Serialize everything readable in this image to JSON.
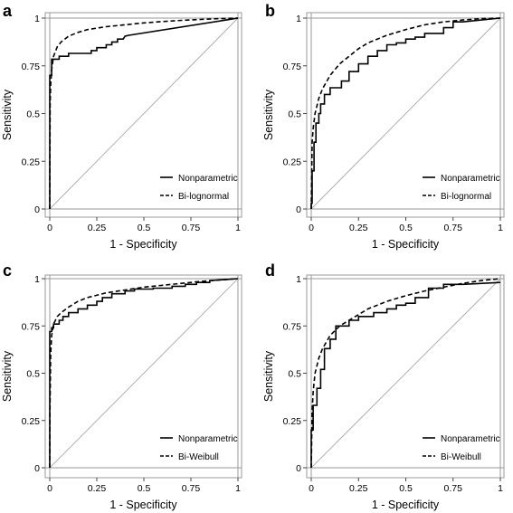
{
  "chart_data": [
    {
      "panel": "a",
      "type": "line",
      "xlabel": "1 - Specificity",
      "ylabel": "Sensitivity",
      "xlim": [
        0,
        1
      ],
      "ylim": [
        0,
        1
      ],
      "x_ticks": [
        "0",
        "0.25",
        "0.5",
        "0.75",
        "1"
      ],
      "y_ticks": [
        "0",
        "0.25",
        "0.5",
        "0.75",
        "1"
      ],
      "grid": false,
      "legend_position": "bottom-right",
      "series": [
        {
          "name": "Nonparametric",
          "style": "solid",
          "x": [
            0,
            0,
            0.01,
            0.01,
            0.05,
            0.05,
            0.1,
            0.1,
            0.22,
            0.22,
            0.25,
            0.25,
            0.3,
            0.3,
            0.33,
            0.33,
            0.36,
            0.36,
            0.39,
            0.4,
            0.42,
            1
          ],
          "y": [
            0,
            0.7,
            0.7,
            0.785,
            0.785,
            0.8,
            0.8,
            0.815,
            0.815,
            0.83,
            0.83,
            0.845,
            0.845,
            0.86,
            0.86,
            0.875,
            0.875,
            0.89,
            0.89,
            0.905,
            0.91,
            1
          ]
        },
        {
          "name": "Bi-lognormal",
          "style": "dashed",
          "x": [
            0,
            0.002,
            0.005,
            0.01,
            0.02,
            0.04,
            0.06,
            0.1,
            0.15,
            0.2,
            0.3,
            0.4,
            0.5,
            0.6,
            0.7,
            0.8,
            0.9,
            1
          ],
          "y": [
            0,
            0.55,
            0.65,
            0.73,
            0.8,
            0.85,
            0.875,
            0.905,
            0.925,
            0.94,
            0.955,
            0.965,
            0.975,
            0.982,
            0.988,
            0.993,
            0.997,
            1
          ]
        }
      ]
    },
    {
      "panel": "b",
      "type": "line",
      "xlabel": "1 - Specificity",
      "ylabel": "Sensitivity",
      "xlim": [
        0,
        1
      ],
      "ylim": [
        0,
        1
      ],
      "x_ticks": [
        "0",
        "0.25",
        "0.5",
        "0.75",
        "1"
      ],
      "y_ticks": [
        "0",
        "0.25",
        "0.5",
        "0.75",
        "1"
      ],
      "grid": false,
      "legend_position": "bottom-right",
      "series": [
        {
          "name": "Nonparametric",
          "style": "solid",
          "x": [
            0,
            0,
            0.005,
            0.005,
            0.015,
            0.015,
            0.025,
            0.025,
            0.04,
            0.04,
            0.05,
            0.05,
            0.07,
            0.07,
            0.1,
            0.1,
            0.16,
            0.16,
            0.2,
            0.2,
            0.25,
            0.25,
            0.3,
            0.3,
            0.35,
            0.35,
            0.4,
            0.4,
            0.45,
            0.45,
            0.5,
            0.5,
            0.55,
            0.55,
            0.6,
            0.6,
            0.7,
            0.7,
            0.75,
            0.75,
            0.8,
            1
          ],
          "y": [
            0,
            0.03,
            0.03,
            0.2,
            0.2,
            0.35,
            0.35,
            0.45,
            0.45,
            0.5,
            0.5,
            0.55,
            0.55,
            0.6,
            0.6,
            0.635,
            0.635,
            0.67,
            0.67,
            0.72,
            0.72,
            0.76,
            0.76,
            0.8,
            0.8,
            0.83,
            0.83,
            0.86,
            0.86,
            0.87,
            0.87,
            0.89,
            0.89,
            0.9,
            0.9,
            0.92,
            0.92,
            0.95,
            0.95,
            0.98,
            0.98,
            1
          ]
        },
        {
          "name": "Bi-lognormal",
          "style": "dashed",
          "x": [
            0,
            0.005,
            0.01,
            0.02,
            0.04,
            0.06,
            0.1,
            0.15,
            0.2,
            0.25,
            0.3,
            0.4,
            0.5,
            0.6,
            0.7,
            0.8,
            0.9,
            1
          ],
          "y": [
            0,
            0.35,
            0.42,
            0.5,
            0.58,
            0.63,
            0.7,
            0.76,
            0.8,
            0.84,
            0.87,
            0.91,
            0.94,
            0.965,
            0.98,
            0.99,
            0.997,
            1
          ]
        }
      ]
    },
    {
      "panel": "c",
      "type": "line",
      "xlabel": "1 - Specificity",
      "ylabel": "Sensitivity",
      "xlim": [
        0,
        1
      ],
      "ylim": [
        0,
        1
      ],
      "x_ticks": [
        "0",
        "0.25",
        "0.5",
        "0.75",
        "1"
      ],
      "y_ticks": [
        "0",
        "0.25",
        "0.5",
        "0.75",
        "1"
      ],
      "grid": false,
      "legend_position": "bottom-right",
      "series": [
        {
          "name": "Nonparametric",
          "style": "solid",
          "x": [
            0,
            0,
            0.01,
            0.01,
            0.02,
            0.02,
            0.05,
            0.05,
            0.07,
            0.07,
            0.1,
            0.1,
            0.15,
            0.15,
            0.2,
            0.2,
            0.25,
            0.25,
            0.28,
            0.28,
            0.33,
            0.33,
            0.4,
            0.4,
            0.45,
            0.45,
            0.55,
            0.55,
            0.65,
            0.65,
            0.72,
            0.72,
            0.78,
            0.78,
            0.85,
            0.85,
            1
          ],
          "y": [
            0,
            0.72,
            0.72,
            0.74,
            0.74,
            0.76,
            0.76,
            0.78,
            0.78,
            0.8,
            0.8,
            0.82,
            0.82,
            0.84,
            0.84,
            0.86,
            0.86,
            0.88,
            0.88,
            0.9,
            0.9,
            0.92,
            0.92,
            0.935,
            0.935,
            0.945,
            0.945,
            0.95,
            0.95,
            0.96,
            0.96,
            0.97,
            0.97,
            0.98,
            0.98,
            0.99,
            1
          ]
        },
        {
          "name": "Bi-Weibull",
          "style": "dashed",
          "x": [
            0,
            0.001,
            0.005,
            0.01,
            0.02,
            0.04,
            0.06,
            0.1,
            0.15,
            0.2,
            0.3,
            0.4,
            0.5,
            0.6,
            0.7,
            0.8,
            0.9,
            1
          ],
          "y": [
            0,
            0.3,
            0.6,
            0.7,
            0.76,
            0.8,
            0.82,
            0.85,
            0.88,
            0.9,
            0.925,
            0.94,
            0.955,
            0.965,
            0.975,
            0.985,
            0.993,
            1
          ]
        }
      ]
    },
    {
      "panel": "d",
      "type": "line",
      "xlabel": "1 - Specificity",
      "ylabel": "Sensitivity",
      "xlim": [
        0,
        1
      ],
      "ylim": [
        0,
        1
      ],
      "x_ticks": [
        "0",
        "0.25",
        "0.5",
        "0.75",
        "1"
      ],
      "y_ticks": [
        "0",
        "0.25",
        "0.5",
        "0.75",
        "1"
      ],
      "grid": false,
      "legend_position": "bottom-right",
      "series": [
        {
          "name": "Nonparametric",
          "style": "solid",
          "x": [
            0,
            0,
            0.01,
            0.01,
            0.03,
            0.03,
            0.05,
            0.05,
            0.07,
            0.07,
            0.1,
            0.1,
            0.13,
            0.13,
            0.2,
            0.2,
            0.25,
            0.25,
            0.33,
            0.33,
            0.4,
            0.4,
            0.45,
            0.45,
            0.5,
            0.5,
            0.55,
            0.55,
            0.62,
            0.62,
            0.7,
            0.7,
            0.8,
            0.8,
            1
          ],
          "y": [
            0,
            0.2,
            0.2,
            0.33,
            0.33,
            0.42,
            0.42,
            0.52,
            0.52,
            0.63,
            0.63,
            0.68,
            0.68,
            0.75,
            0.75,
            0.78,
            0.78,
            0.8,
            0.8,
            0.82,
            0.82,
            0.84,
            0.84,
            0.86,
            0.86,
            0.87,
            0.87,
            0.9,
            0.9,
            0.95,
            0.95,
            0.97,
            0.97,
            0.97,
            0.98
          ]
        },
        {
          "name": "Bi-Weibull",
          "style": "dashed",
          "x": [
            0,
            0.005,
            0.01,
            0.02,
            0.04,
            0.06,
            0.1,
            0.15,
            0.2,
            0.25,
            0.3,
            0.4,
            0.5,
            0.6,
            0.7,
            0.8,
            0.9,
            1
          ],
          "y": [
            0,
            0.3,
            0.4,
            0.5,
            0.58,
            0.63,
            0.7,
            0.75,
            0.78,
            0.81,
            0.84,
            0.88,
            0.91,
            0.935,
            0.955,
            0.975,
            0.99,
            1
          ]
        }
      ]
    }
  ]
}
